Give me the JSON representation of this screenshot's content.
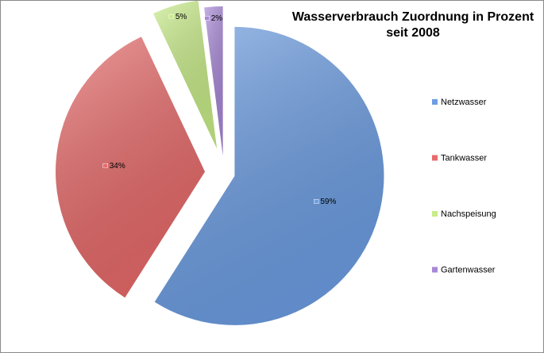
{
  "chart_data": {
    "type": "pie",
    "title": "Wasserverbrauch Zuordnung in Prozent seit 2008",
    "categories": [
      "Netzwasser",
      "Tankwasser",
      "Nachspeisung",
      "Gartenwasser"
    ],
    "values": [
      59,
      34,
      5,
      2
    ],
    "value_labels": [
      "59%",
      "34%",
      "5%",
      "2%"
    ],
    "colors": [
      "#6d9ee3",
      "#e86a6a",
      "#c8ec88",
      "#a888d6"
    ],
    "legend": "right"
  }
}
